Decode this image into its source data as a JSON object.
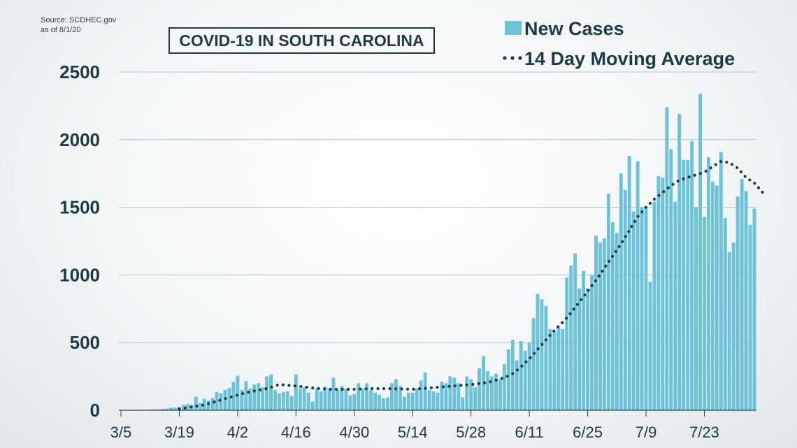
{
  "source": {
    "line1": "Source: SCDHEC.gov",
    "line2": "as of 8/1/20"
  },
  "chart_data": {
    "type": "bar",
    "title": "COVID-19 IN SOUTH CAROLINA",
    "xlabel": "",
    "ylabel": "",
    "ylim": [
      0,
      2500
    ],
    "yticks": [
      0,
      500,
      1000,
      1500,
      2000,
      2500
    ],
    "grid": true,
    "legend_position": "top-right",
    "colors": {
      "bar": "#6cc3d9",
      "line": "#1f3a44",
      "text": "#1f3a44",
      "grid": "#b8c3c8"
    },
    "xticks": [
      {
        "day": 0,
        "label": "3/5"
      },
      {
        "day": 14,
        "label": "3/19"
      },
      {
        "day": 28,
        "label": "4/2"
      },
      {
        "day": 42,
        "label": "4/16"
      },
      {
        "day": 56,
        "label": "4/30"
      },
      {
        "day": 70,
        "label": "5/14"
      },
      {
        "day": 84,
        "label": "5/28"
      },
      {
        "day": 98,
        "label": "6/11"
      },
      {
        "day": 112,
        "label": "6/25"
      },
      {
        "day": 126,
        "label": "7/9"
      },
      {
        "day": 140,
        "label": "7/23"
      }
    ],
    "series": [
      {
        "name": "New Cases",
        "type": "bar",
        "values": [
          2,
          0,
          1,
          2,
          1,
          3,
          3,
          5,
          6,
          8,
          10,
          12,
          18,
          20,
          25,
          40,
          45,
          38,
          100,
          55,
          85,
          70,
          90,
          135,
          125,
          150,
          165,
          210,
          255,
          150,
          215,
          160,
          190,
          200,
          170,
          250,
          265,
          150,
          125,
          135,
          140,
          105,
          265,
          160,
          170,
          130,
          65,
          160,
          140,
          175,
          160,
          240,
          150,
          180,
          160,
          110,
          120,
          200,
          160,
          200,
          150,
          130,
          115,
          90,
          95,
          200,
          230,
          180,
          100,
          130,
          130,
          160,
          220,
          280,
          150,
          140,
          130,
          210,
          200,
          250,
          240,
          200,
          95,
          250,
          230,
          170,
          310,
          400,
          290,
          250,
          270,
          230,
          340,
          450,
          520,
          370,
          510,
          440,
          500,
          680,
          860,
          820,
          770,
          600,
          580,
          610,
          600,
          980,
          1070,
          1160,
          900,
          1030,
          900,
          1000,
          1290,
          1240,
          1270,
          1600,
          1390,
          1310,
          1750,
          1630,
          1880,
          1470,
          1840,
          1500,
          1490,
          950,
          1540,
          1730,
          1720,
          2240,
          1930,
          1540,
          2190,
          1850,
          1850,
          1990,
          1500,
          2340,
          1430,
          1870,
          1690,
          1660,
          1910,
          1420,
          1170,
          1240,
          1580,
          1710,
          1620,
          1370,
          1490
        ]
      },
      {
        "name": "14 Day Moving Average",
        "type": "line",
        "style": "dotted",
        "points": [
          [
            14,
            10
          ],
          [
            20,
            40
          ],
          [
            25,
            85
          ],
          [
            30,
            130
          ],
          [
            35,
            160
          ],
          [
            38,
            190
          ],
          [
            42,
            180
          ],
          [
            46,
            165
          ],
          [
            50,
            155
          ],
          [
            56,
            155
          ],
          [
            60,
            160
          ],
          [
            64,
            160
          ],
          [
            70,
            155
          ],
          [
            74,
            165
          ],
          [
            78,
            175
          ],
          [
            84,
            190
          ],
          [
            88,
            205
          ],
          [
            92,
            240
          ],
          [
            94,
            270
          ],
          [
            96,
            320
          ],
          [
            98,
            380
          ],
          [
            100,
            450
          ],
          [
            102,
            520
          ],
          [
            104,
            590
          ],
          [
            106,
            650
          ],
          [
            108,
            720
          ],
          [
            110,
            800
          ],
          [
            112,
            880
          ],
          [
            114,
            960
          ],
          [
            116,
            1050
          ],
          [
            118,
            1140
          ],
          [
            120,
            1230
          ],
          [
            122,
            1330
          ],
          [
            124,
            1430
          ],
          [
            126,
            1500
          ],
          [
            128,
            1560
          ],
          [
            130,
            1610
          ],
          [
            132,
            1660
          ],
          [
            134,
            1700
          ],
          [
            136,
            1720
          ],
          [
            138,
            1740
          ],
          [
            140,
            1760
          ],
          [
            142,
            1800
          ],
          [
            144,
            1840
          ],
          [
            146,
            1830
          ],
          [
            148,
            1790
          ],
          [
            150,
            1720
          ],
          [
            152,
            1680
          ],
          [
            154,
            1610
          ]
        ]
      }
    ]
  }
}
